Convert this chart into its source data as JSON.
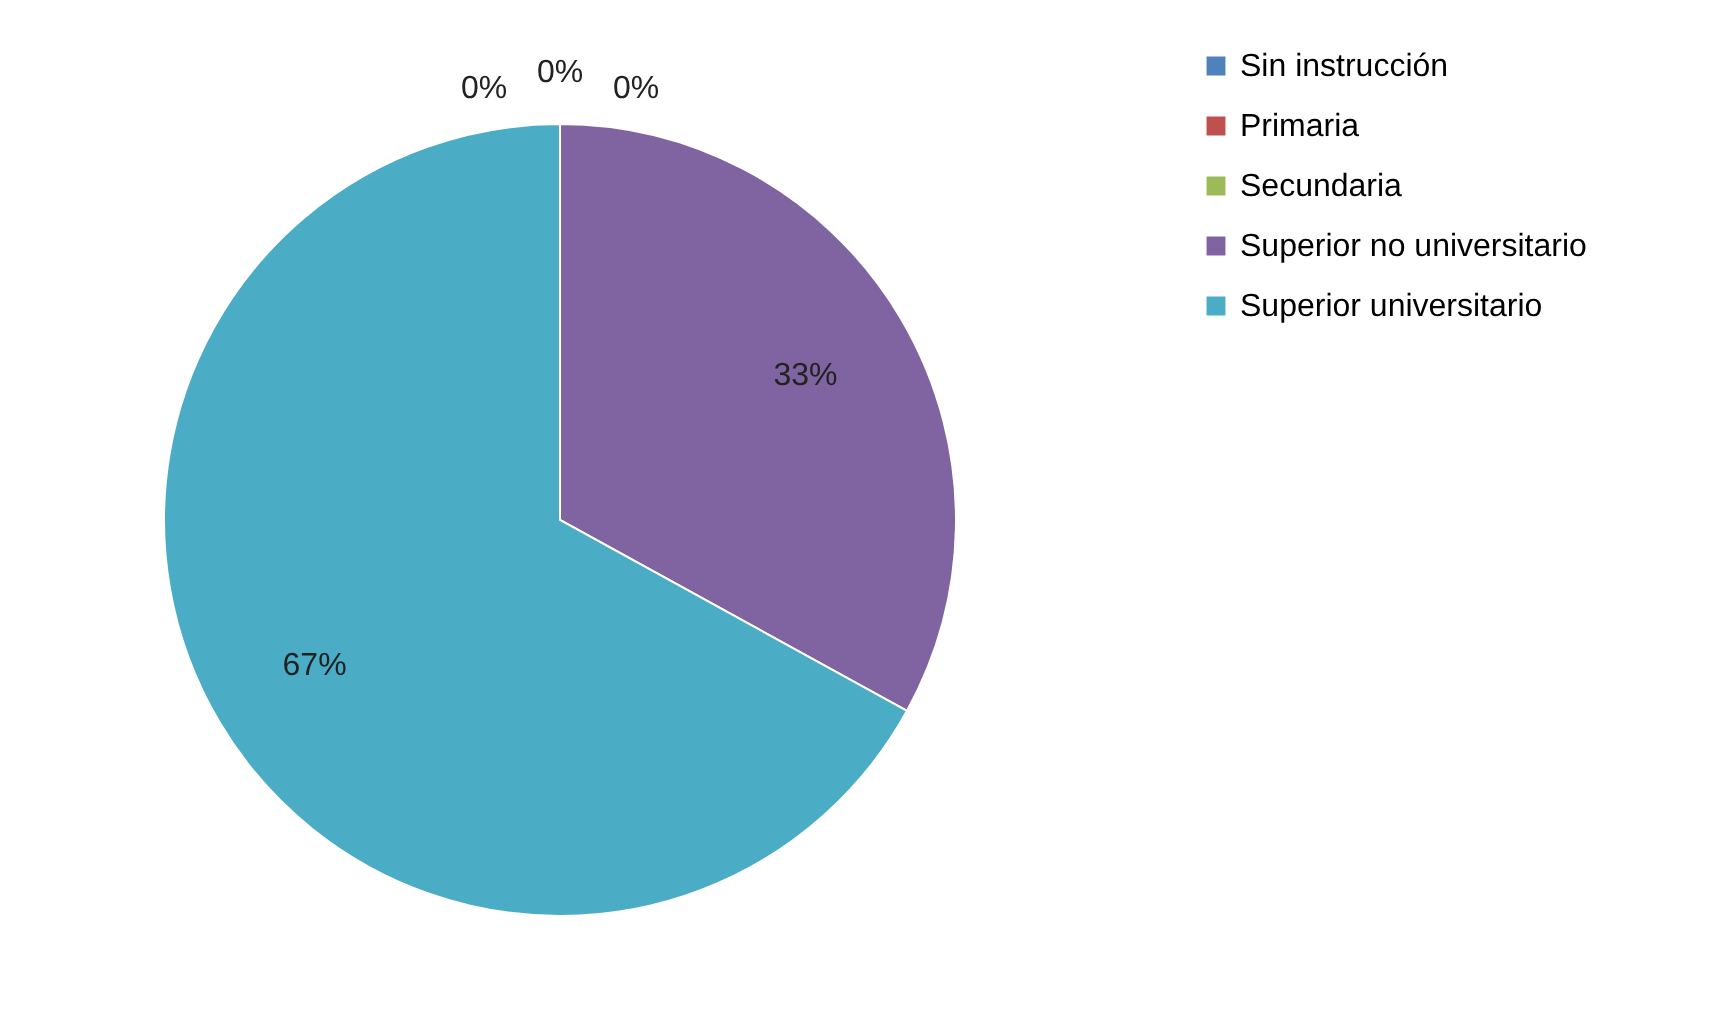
{
  "chart_data": {
    "type": "pie",
    "categories": [
      "Sin instrucción",
      "Primaria",
      "Secundaria",
      "Superior no universitario",
      "Superior universitario"
    ],
    "values": [
      0,
      0,
      0,
      33,
      67
    ],
    "colors": [
      "#4f81bd",
      "#c0504d",
      "#9bbb59",
      "#8064a2",
      "#4bacc6"
    ],
    "value_labels": [
      "0%",
      "0%",
      "0%",
      "33%",
      "67%"
    ],
    "legend": "right"
  }
}
